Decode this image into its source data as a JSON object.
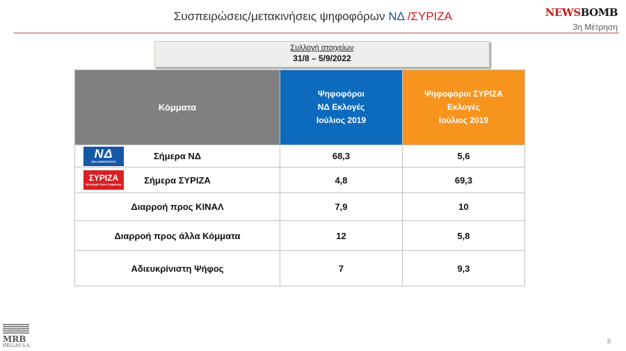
{
  "header": {
    "title_main": "Συσπειρώσεις/μετακινήσεις ψηφοφόρων",
    "title_nd": "ΝΔ",
    "title_syriza": "/ΣΥΡΙΖΑ",
    "brand_a": "NEWS",
    "brand_b": "BOMB",
    "measurement": "3η Μέτρηση"
  },
  "collection": {
    "label": "Συλλογή στοιχείων",
    "dates": "31/8 – 5/9/2022"
  },
  "table": {
    "headers": {
      "col1": "Κόμματα",
      "col2_l1": "Ψηφοφόροι",
      "col2_l2": "ΝΔ Εκλογές",
      "col2_l3": "Ιούλιος 2019",
      "col3_l1": "Ψηφοφόροι ΣΥΡΙΖΑ",
      "col3_l2": "Εκλογές",
      "col3_l3": "Ιούλιος 2019"
    },
    "rows": [
      {
        "label": "Σήμερα ΝΔ",
        "nd": "68,3",
        "syriza": "5,6"
      },
      {
        "label": "Σήμερα ΣΥΡΙΖΑ",
        "nd": "4,8",
        "syriza": "69,3"
      },
      {
        "label": "Διαρροή προς ΚΙΝΑΛ",
        "nd": "7,9",
        "syriza": "10"
      },
      {
        "label": "Διαρροή προς άλλα Κόμματα",
        "nd": "12",
        "syriza": "5,8"
      },
      {
        "label": "Αδιευκρίνιστη Ψήφος",
        "nd": "7",
        "syriza": "9,3"
      }
    ]
  },
  "logos": {
    "nd_big": "ΝΔ",
    "nd_small": "ΝΕΑ ΔΗΜΟΚΡΑΤΙΑ",
    "syriza_big": "ΣΥΡΙΖΑ",
    "syriza_small": "ΠΡΟΟΔΕΥΤΙΚΗ ΣΥΜΜΑΧΙΑ"
  },
  "footer": {
    "mrb_name": "MRB",
    "mrb_sub": "HELLAS S.A.",
    "page_number": "8"
  },
  "colors": {
    "nd_blue": "#0c6bbd",
    "syriza_orange": "#f7941d",
    "header_gray": "#808080",
    "brand_red": "#c41a1a"
  }
}
